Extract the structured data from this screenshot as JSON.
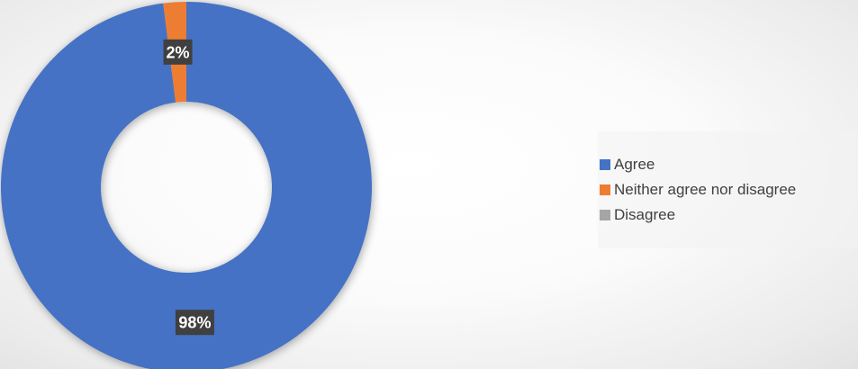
{
  "chart_data": {
    "type": "pie",
    "variant": "donut",
    "categories": [
      "Agree",
      "Neither agree nor disagree",
      "Disagree"
    ],
    "values": [
      98,
      2,
      0
    ],
    "value_labels": [
      "98%",
      "2%",
      ""
    ],
    "colors": [
      "#4472C4",
      "#ED7D31",
      "#A5A5A5"
    ],
    "label_background": "#404040",
    "label_color": "#FFFFFF",
    "legend_placement": "right"
  }
}
